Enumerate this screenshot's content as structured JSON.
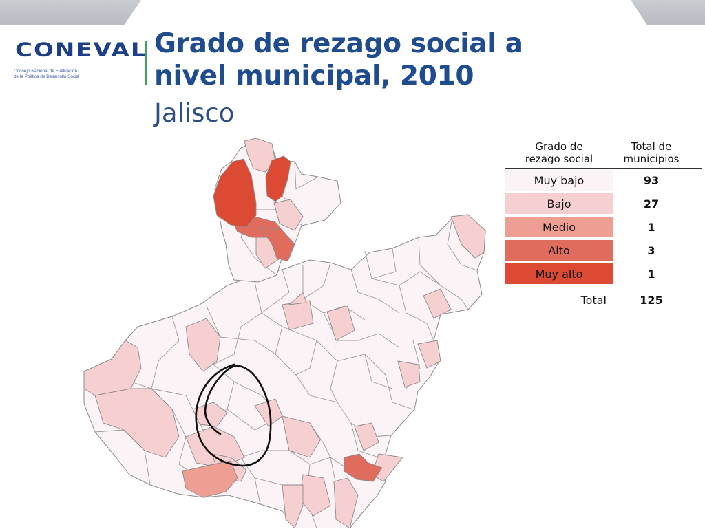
{
  "header": {
    "logo_word": "CONEVAL",
    "logo_subtitle": "Consejo Nacional de Evaluación\nde la Política de Desarrollo Social",
    "title": "Grado de rezago social a\nnivel municipal, 2010",
    "subtitle": "Jalisco"
  },
  "colors": {
    "title": "#1f4b8f",
    "muy_bajo": "#fcf3f6",
    "bajo": "#f6cfd0",
    "medio": "#ef9e93",
    "alto": "#e06c5d",
    "muy_alto": "#dc4a33",
    "border": "#8a8a8a",
    "annotation": "#111111"
  },
  "legend": {
    "col1_header": "Grado de\nrezago social",
    "col2_header": "Total de\nmunicipios",
    "rows": [
      {
        "label": "Muy bajo",
        "count": "93",
        "color": "#fcf3f6"
      },
      {
        "label": "Bajo",
        "count": "27",
        "color": "#f6cfd0"
      },
      {
        "label": "Medio",
        "count": "1",
        "color": "#ef9e93"
      },
      {
        "label": "Alto",
        "count": "3",
        "color": "#e06c5d"
      },
      {
        "label": "Muy alto",
        "count": "1",
        "color": "#dc4a33"
      }
    ],
    "total_label": "Total",
    "total_count": "125"
  },
  "map": {
    "region": "Jalisco",
    "annotation": "hand-drawn-circle"
  }
}
